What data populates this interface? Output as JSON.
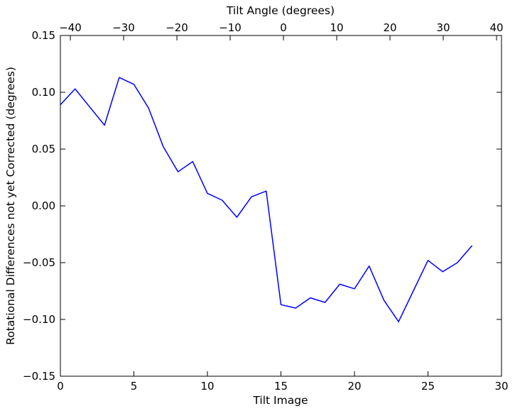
{
  "figure": {
    "background_color": "#ffffff",
    "axes_color": "#000000"
  },
  "chart_data": {
    "type": "line",
    "title": "",
    "xlabel": "Tilt Image",
    "xlabel_top": "Tilt Angle (degrees)",
    "ylabel": "Rotational Differences not yet Corrected (degrees)",
    "line_color": "#0000ff",
    "grid": false,
    "legend": null,
    "xlim": [
      0,
      30
    ],
    "xlim_top": [
      -41.87,
      40.93
    ],
    "ylim": [
      -0.15,
      0.15
    ],
    "x": [
      0,
      1,
      2,
      3,
      4,
      5,
      6,
      7,
      8,
      9,
      10,
      11,
      12,
      13,
      14,
      15,
      16,
      17,
      18,
      19,
      20,
      21,
      22,
      23,
      24,
      25,
      26,
      27,
      28
    ],
    "values": [
      0.089,
      0.103,
      0.087,
      0.071,
      0.113,
      0.107,
      0.086,
      0.052,
      0.03,
      0.039,
      0.011,
      0.005,
      -0.01,
      0.008,
      0.013,
      -0.087,
      -0.09,
      -0.081,
      -0.085,
      -0.069,
      -0.073,
      -0.053,
      -0.083,
      -0.102,
      -0.075,
      -0.048,
      -0.058,
      -0.05,
      -0.035
    ],
    "xticks_bottom": {
      "values": [
        0,
        5,
        10,
        15,
        20,
        25,
        30
      ],
      "labels": [
        "0",
        "5",
        "10",
        "15",
        "20",
        "25",
        "30"
      ]
    },
    "xticks_top": {
      "values": [
        -40,
        -30,
        -20,
        -10,
        0,
        10,
        20,
        30,
        40
      ],
      "labels": [
        "−40",
        "−30",
        "−20",
        "−10",
        "0",
        "10",
        "20",
        "30",
        "40"
      ]
    },
    "yticks": {
      "values": [
        0.15,
        0.1,
        0.05,
        0.0,
        -0.05,
        -0.1,
        -0.15
      ],
      "labels": [
        "0.15",
        "0.10",
        "0.05",
        "0.00",
        "−0.05",
        "−0.10",
        "−0.15"
      ]
    }
  }
}
